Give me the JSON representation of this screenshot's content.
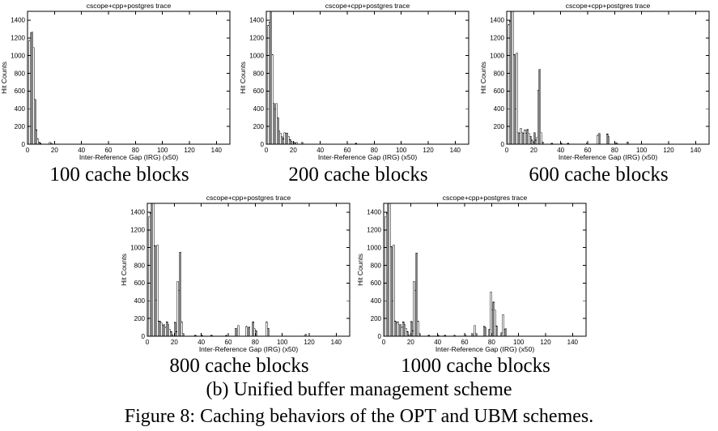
{
  "figure": {
    "sub_caption": "(b) Unified buffer management scheme",
    "caption": "Figure 8: Caching behaviors of the OPT and UBM schemes."
  },
  "colors": {
    "ink": "#000000",
    "paper": "#ffffff"
  },
  "chart_data": [
    {
      "type": "bar",
      "title": "cscope+cpp+postgres trace",
      "xlabel": "Inter-Reference Gap (IRG) (x50)",
      "ylabel": "Hit Counts",
      "caption": "100 cache blocks",
      "xlim": [
        0,
        150
      ],
      "ylim": [
        0,
        1500
      ],
      "xticks": [
        0,
        20,
        40,
        60,
        80,
        100,
        120,
        140
      ],
      "yticks": [
        0,
        200,
        400,
        600,
        800,
        1000,
        1200,
        1400
      ],
      "grid": false,
      "legend": "none",
      "bars": [
        [
          0,
          800
        ],
        [
          1,
          1170
        ],
        [
          2,
          1255
        ],
        [
          3,
          1265
        ],
        [
          4,
          1090
        ],
        [
          5,
          505
        ],
        [
          6,
          160
        ],
        [
          7,
          60
        ],
        [
          8,
          25
        ],
        [
          9,
          10
        ],
        [
          16,
          20
        ],
        [
          17,
          12
        ]
      ]
    },
    {
      "type": "bar",
      "title": "cscope+cpp+postgres trace",
      "xlabel": "Inter-Reference Gap (IRG) (x50)",
      "ylabel": "Hit Counts",
      "caption": "200 cache blocks",
      "xlim": [
        0,
        150
      ],
      "ylim": [
        0,
        1500
      ],
      "xticks": [
        0,
        20,
        40,
        60,
        80,
        100,
        120,
        140
      ],
      "yticks": [
        0,
        200,
        400,
        600,
        800,
        1000,
        1200,
        1400
      ],
      "grid": false,
      "legend": "none",
      "bars": [
        [
          0,
          800
        ],
        [
          1,
          1340
        ],
        [
          2,
          1380
        ],
        [
          3,
          1550
        ],
        [
          4,
          1010
        ],
        [
          5,
          460
        ],
        [
          6,
          395
        ],
        [
          7,
          460
        ],
        [
          8,
          300
        ],
        [
          9,
          150
        ],
        [
          10,
          125
        ],
        [
          11,
          85
        ],
        [
          12,
          60
        ],
        [
          13,
          130
        ],
        [
          14,
          120
        ],
        [
          15,
          125
        ],
        [
          16,
          90
        ],
        [
          17,
          50
        ],
        [
          18,
          30
        ],
        [
          19,
          25
        ],
        [
          20,
          20
        ],
        [
          21,
          15
        ],
        [
          22,
          20
        ],
        [
          26,
          20
        ],
        [
          66,
          10
        ]
      ]
    },
    {
      "type": "bar",
      "title": "cscope+cpp+postgres trace",
      "xlabel": "Inter-Reference Gap (IRG) (x50)",
      "ylabel": "Hit Counts",
      "caption": "600 cache blocks",
      "xlim": [
        0,
        150
      ],
      "ylim": [
        0,
        1500
      ],
      "xticks": [
        0,
        20,
        40,
        60,
        80,
        100,
        120,
        140
      ],
      "yticks": [
        0,
        200,
        400,
        600,
        800,
        1000,
        1200,
        1400
      ],
      "grid": false,
      "legend": "none",
      "bars": [
        [
          0,
          800
        ],
        [
          1,
          1350
        ],
        [
          2,
          1390
        ],
        [
          3,
          1550
        ],
        [
          4,
          1550
        ],
        [
          5,
          1010
        ],
        [
          6,
          400
        ],
        [
          7,
          1030
        ],
        [
          8,
          130
        ],
        [
          9,
          120
        ],
        [
          10,
          180
        ],
        [
          11,
          130
        ],
        [
          12,
          120
        ],
        [
          13,
          160
        ],
        [
          14,
          120
        ],
        [
          15,
          165
        ],
        [
          16,
          120
        ],
        [
          17,
          90
        ],
        [
          18,
          45
        ],
        [
          19,
          20
        ],
        [
          20,
          130
        ],
        [
          21,
          45
        ],
        [
          22,
          75
        ],
        [
          23,
          610
        ],
        [
          24,
          845
        ],
        [
          25,
          130
        ],
        [
          26,
          25
        ],
        [
          33,
          10
        ],
        [
          40,
          10
        ],
        [
          45,
          10
        ],
        [
          59,
          15
        ],
        [
          67,
          100
        ],
        [
          68,
          120
        ],
        [
          74,
          115
        ],
        [
          75,
          85
        ],
        [
          81,
          15
        ],
        [
          89,
          25
        ]
      ]
    },
    {
      "type": "bar",
      "title": "cscope+cpp+postgres trace",
      "xlabel": "Inter-Reference Gap (IRG) (x50)",
      "ylabel": "Hit Counts",
      "caption": "800 cache blocks",
      "xlim": [
        0,
        150
      ],
      "ylim": [
        0,
        1500
      ],
      "xticks": [
        0,
        20,
        40,
        60,
        80,
        100,
        120,
        140
      ],
      "yticks": [
        0,
        200,
        400,
        600,
        800,
        1000,
        1200,
        1400
      ],
      "grid": false,
      "legend": "none",
      "bars": [
        [
          0,
          800
        ],
        [
          1,
          1350
        ],
        [
          2,
          1390
        ],
        [
          3,
          1550
        ],
        [
          4,
          1550
        ],
        [
          5,
          1020
        ],
        [
          6,
          405
        ],
        [
          7,
          1030
        ],
        [
          8,
          170
        ],
        [
          9,
          165
        ],
        [
          10,
          150
        ],
        [
          11,
          120
        ],
        [
          12,
          130
        ],
        [
          13,
          100
        ],
        [
          14,
          160
        ],
        [
          15,
          130
        ],
        [
          16,
          80
        ],
        [
          17,
          50
        ],
        [
          18,
          15
        ],
        [
          20,
          155
        ],
        [
          21,
          50
        ],
        [
          22,
          620
        ],
        [
          23,
          520
        ],
        [
          24,
          950
        ],
        [
          25,
          160
        ],
        [
          26,
          30
        ],
        [
          35,
          10
        ],
        [
          40,
          10
        ],
        [
          47,
          10
        ],
        [
          58,
          10
        ],
        [
          65,
          90
        ],
        [
          67,
          120
        ],
        [
          73,
          110
        ],
        [
          75,
          100
        ],
        [
          78,
          160
        ],
        [
          79,
          85
        ],
        [
          80,
          60
        ],
        [
          88,
          160
        ],
        [
          89,
          90
        ],
        [
          117,
          20
        ]
      ]
    },
    {
      "type": "bar",
      "title": "cscope+cpp+postgres trace",
      "xlabel": "Inter-Reference Gap (IRG) (x50)",
      "ylabel": "Hit Counts",
      "caption": "1000 cache blocks",
      "xlim": [
        0,
        150
      ],
      "ylim": [
        0,
        1500
      ],
      "xticks": [
        0,
        20,
        40,
        60,
        80,
        100,
        120,
        140
      ],
      "yticks": [
        0,
        200,
        400,
        600,
        800,
        1000,
        1200,
        1400
      ],
      "grid": false,
      "legend": "none",
      "bars": [
        [
          0,
          800
        ],
        [
          1,
          1350
        ],
        [
          2,
          1390
        ],
        [
          3,
          1550
        ],
        [
          4,
          1550
        ],
        [
          5,
          1010
        ],
        [
          6,
          400
        ],
        [
          7,
          1030
        ],
        [
          8,
          170
        ],
        [
          9,
          150
        ],
        [
          10,
          160
        ],
        [
          11,
          130
        ],
        [
          12,
          130
        ],
        [
          13,
          100
        ],
        [
          14,
          160
        ],
        [
          15,
          130
        ],
        [
          16,
          90
        ],
        [
          17,
          50
        ],
        [
          18,
          15
        ],
        [
          20,
          165
        ],
        [
          21,
          60
        ],
        [
          22,
          620
        ],
        [
          23,
          520
        ],
        [
          24,
          940
        ],
        [
          25,
          170
        ],
        [
          26,
          30
        ],
        [
          33,
          10
        ],
        [
          40,
          10
        ],
        [
          45,
          10
        ],
        [
          52,
          10
        ],
        [
          60,
          15
        ],
        [
          65,
          30
        ],
        [
          67,
          120
        ],
        [
          68,
          30
        ],
        [
          74,
          110
        ],
        [
          75,
          95
        ],
        [
          78,
          80
        ],
        [
          79,
          500
        ],
        [
          80,
          300
        ],
        [
          81,
          385
        ],
        [
          82,
          295
        ],
        [
          83,
          115
        ],
        [
          87,
          40
        ],
        [
          88,
          245
        ],
        [
          89,
          75
        ],
        [
          90,
          85
        ]
      ]
    }
  ]
}
